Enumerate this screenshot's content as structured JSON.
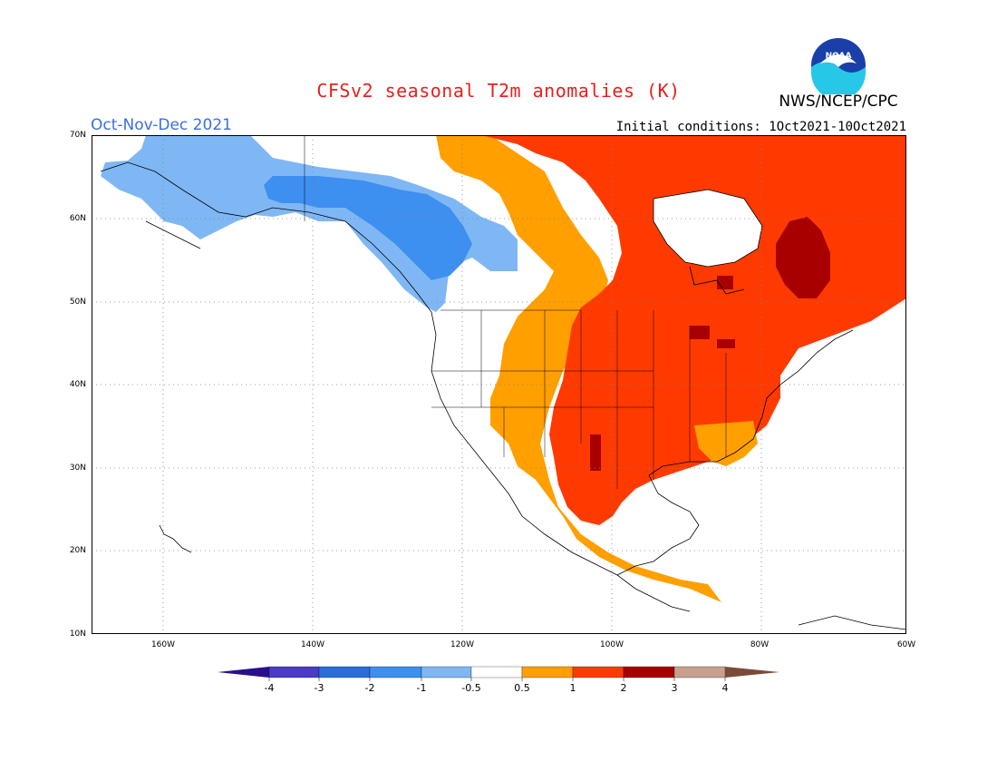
{
  "title": "CFSv2 seasonal T2m anomalies (K)",
  "season": "Oct-Nov-Dec 2021",
  "initial_conditions": "Initial conditions: 1Oct2021-10Oct2021",
  "agency": "NWS/NCEP/CPC",
  "logo_text": "NOAA",
  "lat_labels": [
    "70N",
    "60N",
    "50N",
    "40N",
    "30N",
    "20N",
    "10N"
  ],
  "lon_labels": [
    "160W",
    "140W",
    "120W",
    "100W",
    "80W",
    "60W"
  ],
  "colorbar": {
    "labels": [
      "-4",
      "-3",
      "-2",
      "-1",
      "-0.5",
      "0.5",
      "1",
      "2",
      "3",
      "4"
    ],
    "colors": {
      "lt_neg4": "#2a0f8c",
      "neg4_neg3": "#4a3cc8",
      "neg3_neg2": "#2a6ed8",
      "neg2_neg1": "#3d8ff0",
      "neg1_neg05": "#7fb7f5",
      "neutral": "#ffffff",
      "p05_p1": "#ff9f00",
      "p1_p2": "#ff3a00",
      "p2_p3": "#a80000",
      "p3_p4": "#c8a090",
      "gt_p4": "#7a4a3a"
    }
  }
}
